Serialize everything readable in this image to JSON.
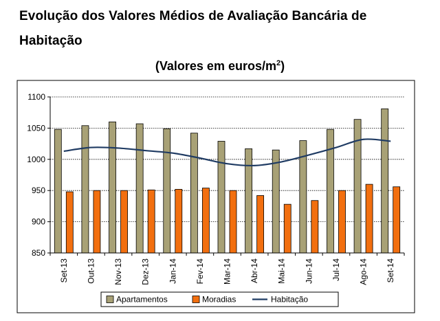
{
  "title_line1": "Evolução dos Valores Médios de Avaliação Bancária de",
  "title_line2": "Habitação",
  "subtitle_main": "(Valores em euros/m",
  "subtitle_sup": "2",
  "subtitle_end": ")",
  "chart_data": {
    "type": "bar",
    "categories": [
      "Set-13",
      "Out-13",
      "Nov-13",
      "Dez-13",
      "Jan-14",
      "Fev-14",
      "Mar-14",
      "Abr-14",
      "Mai-14",
      "Jun-14",
      "Jul-14",
      "Ago-14",
      "Set-14"
    ],
    "series": [
      {
        "name": "Apartamentos",
        "type": "bar",
        "color": "#a8a176",
        "values": [
          1048,
          1054,
          1060,
          1057,
          1049,
          1042,
          1029,
          1017,
          1015,
          1030,
          1048,
          1064,
          1081
        ]
      },
      {
        "name": "Moradias",
        "type": "bar",
        "color": "#f26f0f",
        "values": [
          948,
          950,
          950,
          951,
          952,
          954,
          950,
          942,
          928,
          934,
          950,
          960,
          956
        ]
      },
      {
        "name": "Habitação",
        "type": "line",
        "color": "#1f3b63",
        "values": [
          1013,
          1019,
          1018,
          1014,
          1010,
          1002,
          993,
          990,
          996,
          1007,
          1019,
          1032,
          1029
        ]
      }
    ],
    "ylim": [
      850,
      1100
    ],
    "yticks": [
      850,
      900,
      950,
      1000,
      1050,
      1100
    ],
    "grid": true,
    "legend": "bottom"
  }
}
